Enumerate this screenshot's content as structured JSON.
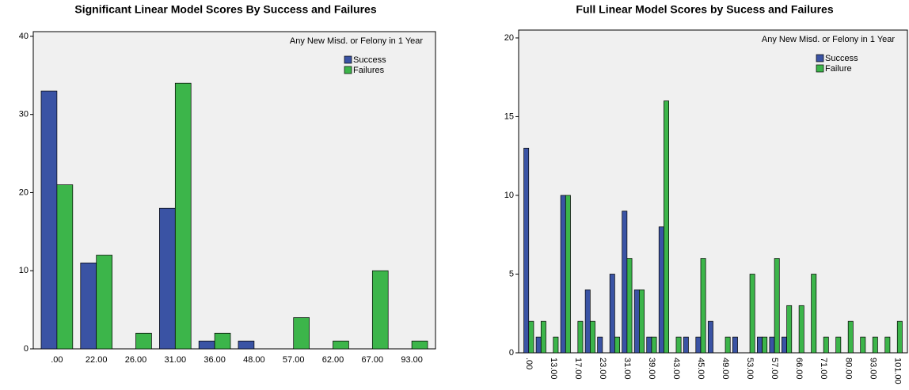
{
  "chart_data": [
    {
      "type": "bar",
      "title": "Significant Linear Model Scores By Success and Failures",
      "legend_title": "Any New Misd. or Felony in 1 Year",
      "categories": [
        ".00",
        "22.00",
        "26.00",
        "31.00",
        "36.00",
        "48.00",
        "57.00",
        "62.00",
        "67.00",
        "93.00"
      ],
      "series": [
        {
          "name": "Success",
          "color": "#3a53a4",
          "values": [
            33,
            11,
            0,
            18,
            1,
            1,
            0,
            0,
            0,
            0
          ]
        },
        {
          "name": "Failures",
          "color": "#3cb54a",
          "values": [
            21,
            12,
            2,
            34,
            2,
            0,
            4,
            1,
            10,
            1
          ]
        }
      ],
      "ylim": [
        0,
        40.6
      ],
      "yticks": [
        0,
        10,
        20,
        30,
        40
      ],
      "legend": "upper right"
    },
    {
      "type": "bar",
      "title": "Full Linear Model Scores by Sucess and Failures",
      "legend_title": "Any New Misd. or Felony in 1 Year",
      "categories": [
        ".00",
        null,
        "13.00",
        null,
        "17.00",
        null,
        "23.00",
        null,
        "31.00",
        null,
        "39.00",
        null,
        "43.00",
        null,
        "45.00",
        null,
        "49.00",
        null,
        "53.00",
        null,
        "57.00",
        null,
        "66.00",
        null,
        "71.00",
        null,
        "80.00",
        null,
        "93.00",
        null,
        "101.00"
      ],
      "series": [
        {
          "name": "Success",
          "color": "#3a53a4",
          "values": [
            13,
            1,
            0,
            10,
            0,
            4,
            1,
            5,
            9,
            4,
            1,
            8,
            0,
            1,
            1,
            2,
            0,
            1,
            0,
            1,
            1,
            1,
            0,
            0,
            0,
            0,
            0,
            0,
            0,
            0,
            0
          ]
        },
        {
          "name": "Failure",
          "color": "#3cb54a",
          "values": [
            2,
            2,
            1,
            10,
            2,
            2,
            0,
            1,
            6,
            4,
            1,
            16,
            1,
            0,
            6,
            0,
            1,
            0,
            5,
            1,
            6,
            3,
            3,
            5,
            1,
            1,
            2,
            1,
            1,
            1,
            2
          ]
        }
      ],
      "ylim": [
        0,
        20.5
      ],
      "yticks": [
        0,
        5,
        10,
        15,
        20
      ],
      "legend": "upper right",
      "rotate_labels": true
    }
  ]
}
